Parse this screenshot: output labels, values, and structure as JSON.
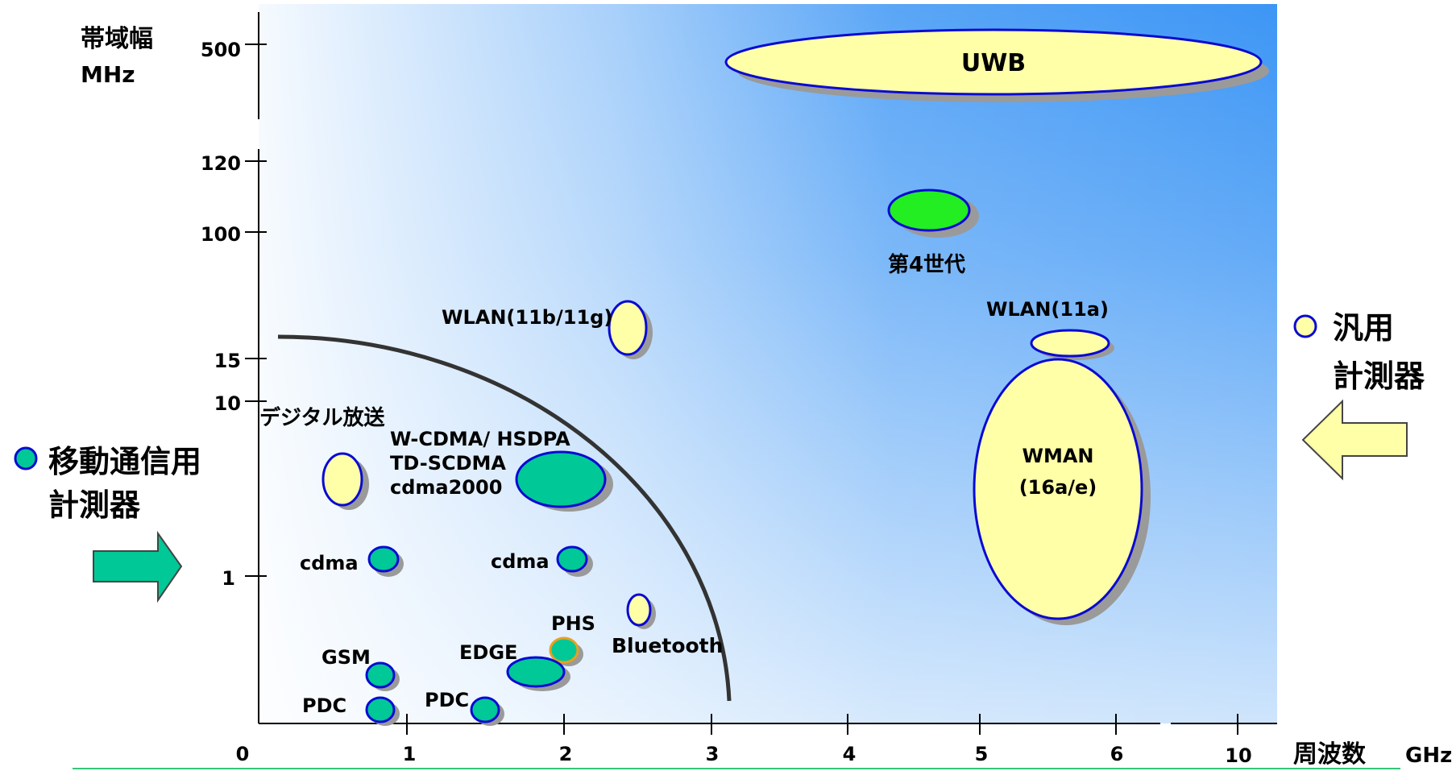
{
  "axis": {
    "y_title_line1": "帯域幅",
    "y_title_line2": "MHz",
    "x_title": "周波数",
    "x_unit": "GHz",
    "y_ticks": [
      "500",
      "120",
      "100",
      "15",
      "10",
      "1"
    ],
    "x_ticks": [
      "0",
      "1",
      "2",
      "3",
      "4",
      "5",
      "6",
      "10"
    ]
  },
  "labels": {
    "uwb": "UWB",
    "gen4": "第4世代",
    "wlan_11bg": "WLAN(11b/11g)",
    "wlan_11a": "WLAN(11a)",
    "wman_line1": "WMAN",
    "wman_line2": "(16a/e)",
    "digital_broadcast": "デジタル放送",
    "wcdma_line1": "W-CDMA/ HSDPA",
    "wcdma_line2": "TD-SCDMA",
    "wcdma_line3": "cdma2000",
    "cdma_left": "cdma",
    "cdma_right": "cdma",
    "phs": "PHS",
    "bluetooth": "Bluetooth",
    "gsm": "GSM",
    "edge": "EDGE",
    "pdc_left": "PDC",
    "pdc_right": "PDC"
  },
  "legend": {
    "general_line1": "汎用",
    "general_line2": "計測器",
    "mobile_line1": "移動通信用",
    "mobile_line2": "計測器"
  },
  "colors": {
    "general": "#ffffa8",
    "mobile": "#00c896",
    "gen4": "#22ee22",
    "outline": "#0a0ad2",
    "phs_outline": "#e8a020"
  }
}
